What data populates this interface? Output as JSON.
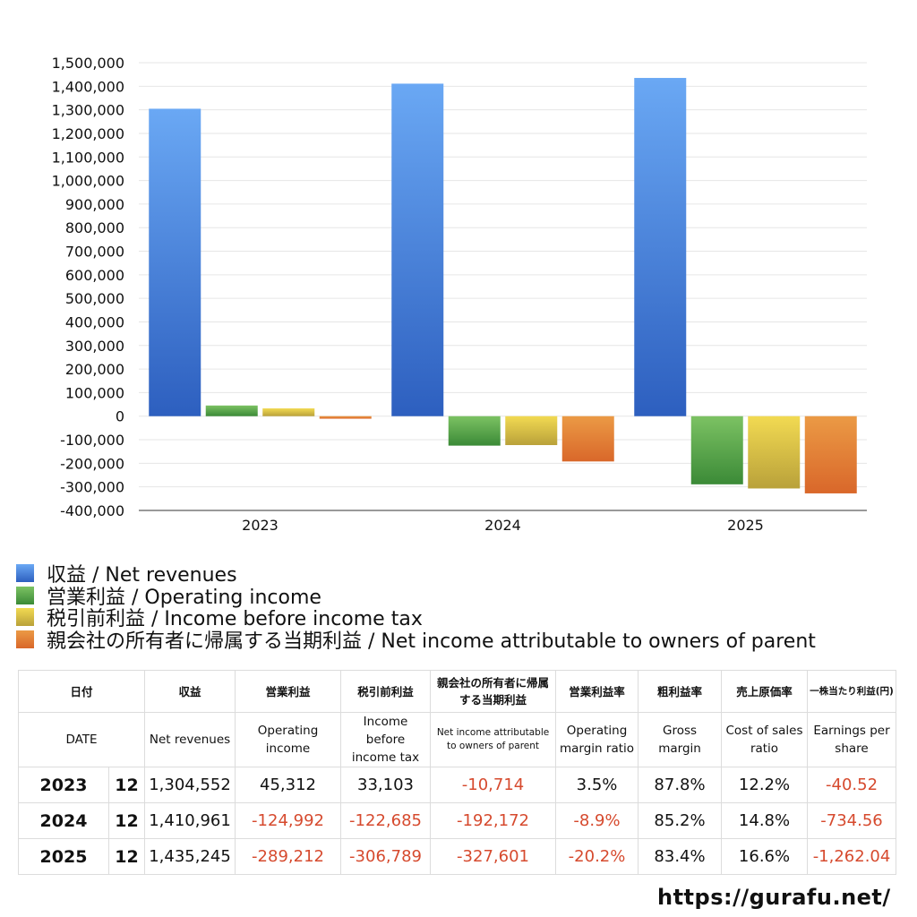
{
  "chart_data": {
    "type": "bar",
    "title": "",
    "xlabel": "",
    "ylabel": "",
    "categories": [
      "2023",
      "2024",
      "2025"
    ],
    "ylim": [
      -400000,
      1500000
    ],
    "ytick_step": 100000,
    "yticks": [
      "1,500,000",
      "1,400,000",
      "1,300,000",
      "1,200,000",
      "1,100,000",
      "1,000,000",
      "900,000",
      "800,000",
      "700,000",
      "600,000",
      "500,000",
      "400,000",
      "300,000",
      "200,000",
      "100,000",
      "0",
      "-100,000",
      "-200,000",
      "-300,000",
      "-400,000"
    ],
    "series": [
      {
        "name": "収益 / Net revenues",
        "values": [
          1304552,
          1410961,
          1435245
        ],
        "color_top": "#6aa8f4",
        "color_bottom": "#2d5fbf"
      },
      {
        "name": "営業利益 / Operating income",
        "values": [
          45312,
          -124992,
          -289212
        ],
        "color_top": "#7cc263",
        "color_bottom": "#3b8a37"
      },
      {
        "name": "税引前利益 / Income before income tax",
        "values": [
          33103,
          -122685,
          -306789
        ],
        "color_top": "#f2da52",
        "color_bottom": "#b9a13a"
      },
      {
        "name": "親会社の所有者に帰属する当期利益 / Net income attributable to owners of parent",
        "values": [
          -10714,
          -192172,
          -327601
        ],
        "color_top": "#eb9a45",
        "color_bottom": "#d9672a"
      }
    ],
    "grid": true,
    "legend_position": "bottom"
  },
  "table": {
    "header_jp": [
      "日付",
      "収益",
      "営業利益",
      "税引前利益",
      "親会社の所有者に帰属する当期利益",
      "営業利益率",
      "粗利益率",
      "売上原価率",
      "一株当たり利益(円)"
    ],
    "header_en": [
      "DATE",
      "Net revenues",
      "Operating income",
      "Income before income tax",
      "Net income attributable to owners of parent",
      "Operating margin ratio",
      "Gross margin",
      "Cost of sales ratio",
      "Earnings per share"
    ],
    "rows": [
      {
        "year": "2023",
        "month": "12",
        "cells": [
          "1,304,552",
          "45,312",
          "33,103",
          "-10,714",
          "3.5%",
          "87.8%",
          "12.2%",
          "-40.52"
        ]
      },
      {
        "year": "2024",
        "month": "12",
        "cells": [
          "1,410,961",
          "-124,992",
          "-122,685",
          "-192,172",
          "-8.9%",
          "85.2%",
          "14.8%",
          "-734.56"
        ]
      },
      {
        "year": "2025",
        "month": "12",
        "cells": [
          "1,435,245",
          "-289,212",
          "-306,789",
          "-327,601",
          "-20.2%",
          "83.4%",
          "16.6%",
          "-1,262.04"
        ]
      }
    ]
  },
  "footer": {
    "url": "https://gurafu.net/"
  }
}
